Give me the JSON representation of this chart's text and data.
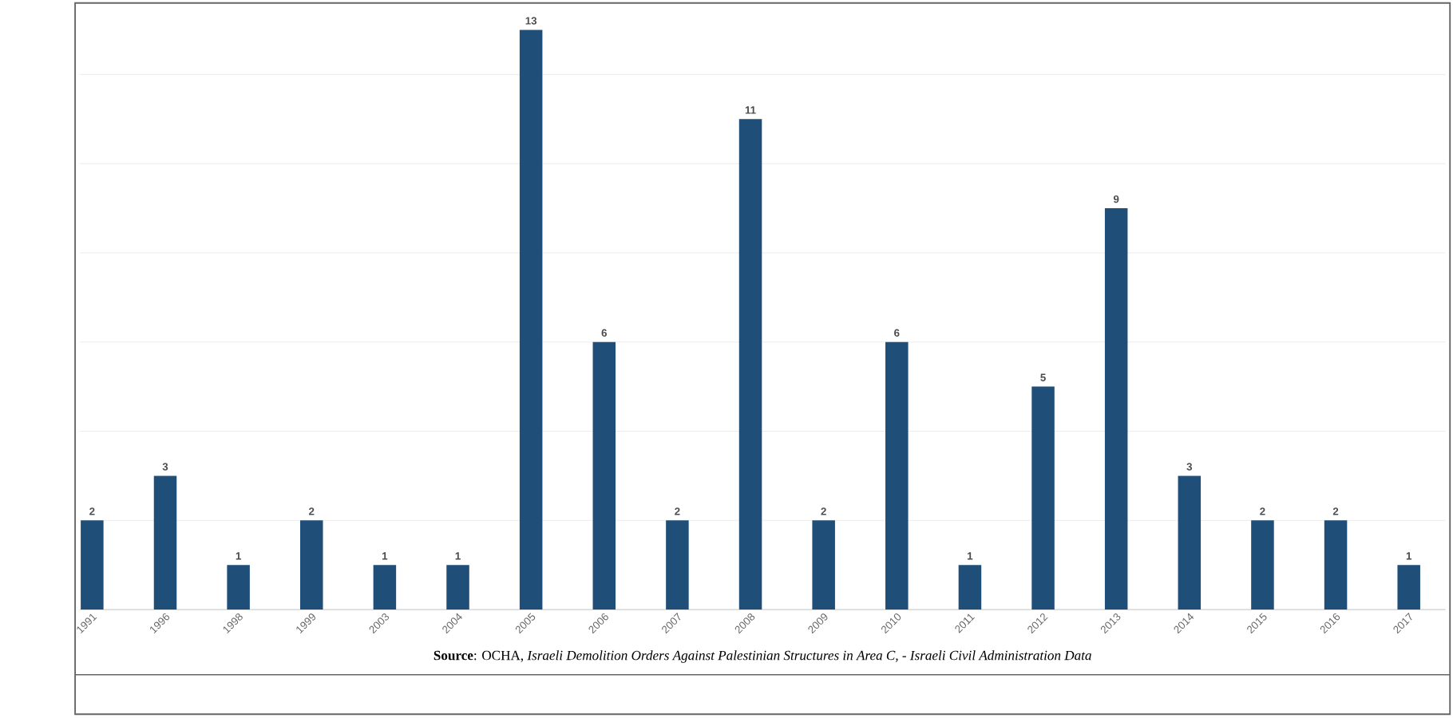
{
  "chart_data": {
    "type": "bar",
    "categories": [
      "1991",
      "1996",
      "1998",
      "1999",
      "2003",
      "2004",
      "2005",
      "2006",
      "2007",
      "2008",
      "2009",
      "2010",
      "2011",
      "2012",
      "2013",
      "2014",
      "2015",
      "2016",
      "2017"
    ],
    "values": [
      2,
      3,
      1,
      2,
      1,
      1,
      13,
      6,
      2,
      11,
      2,
      6,
      1,
      5,
      9,
      3,
      2,
      2,
      1
    ],
    "color": "#1f4e79",
    "ylim": [
      0,
      13.5
    ],
    "yticks": [
      {
        "value": 0,
        "label": null
      },
      {
        "value": 2,
        "label": null
      },
      {
        "value": 4,
        "label": null
      },
      {
        "value": 6,
        "label": null
      },
      {
        "value": 8,
        "label": null
      },
      {
        "value": 10,
        "label": null
      },
      {
        "value": 12,
        "label": null
      }
    ],
    "grid": "y",
    "tick_labels": "x",
    "data_labels": true,
    "annotations": [
      "**Source**: OCHA, *Israeli Demolition Orders Against Palestinian Structures in Area C, - Israeli Civil Administration Data*"
    ]
  }
}
